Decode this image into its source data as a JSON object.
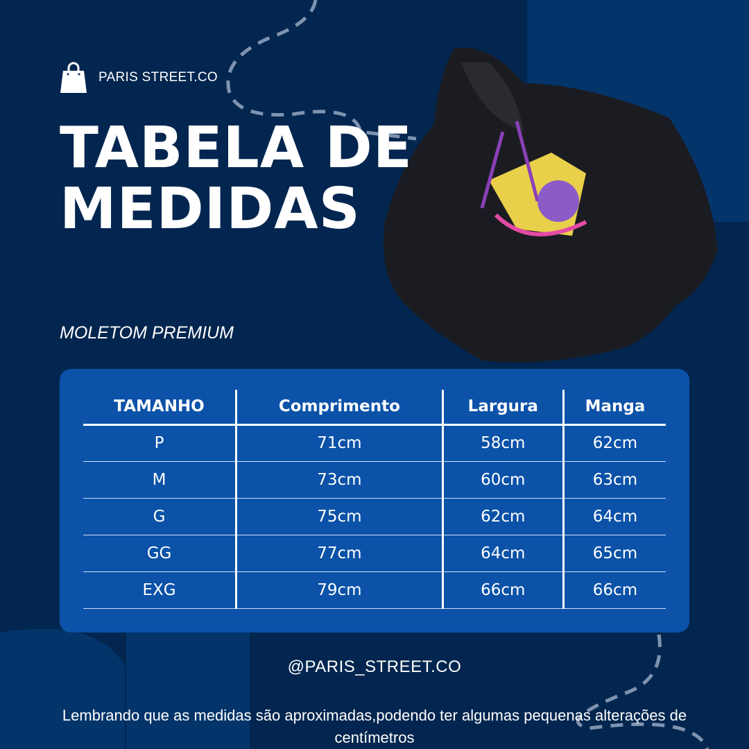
{
  "brand": {
    "name": "PARIS STREET.CO",
    "icon": "shopping-bag-icon"
  },
  "title_line1": "TABELA DE",
  "title_line2": "MEDIDAS",
  "subtitle": "MOLETOM PREMIUM",
  "table": {
    "headers": [
      "TAMANHO",
      "Comprimento",
      "Largura",
      "Manga"
    ],
    "rows": [
      [
        "P",
        "71cm",
        "58cm",
        "62cm"
      ],
      [
        "M",
        "73cm",
        "60cm",
        "63cm"
      ],
      [
        "G",
        "75cm",
        "62cm",
        "64cm"
      ],
      [
        "GG",
        "77cm",
        "64cm",
        "65cm"
      ],
      [
        "EXG",
        "79cm",
        "66cm",
        "66cm"
      ]
    ]
  },
  "handle": "@PARIS_STREET.CO",
  "note": "Lembrando que as medidas são aproximadas,podendo ter algumas pequenas alterações de centímetros",
  "colors": {
    "background": "#02264f",
    "panel": "#0b52a8",
    "accent_shape": "#03356b"
  }
}
